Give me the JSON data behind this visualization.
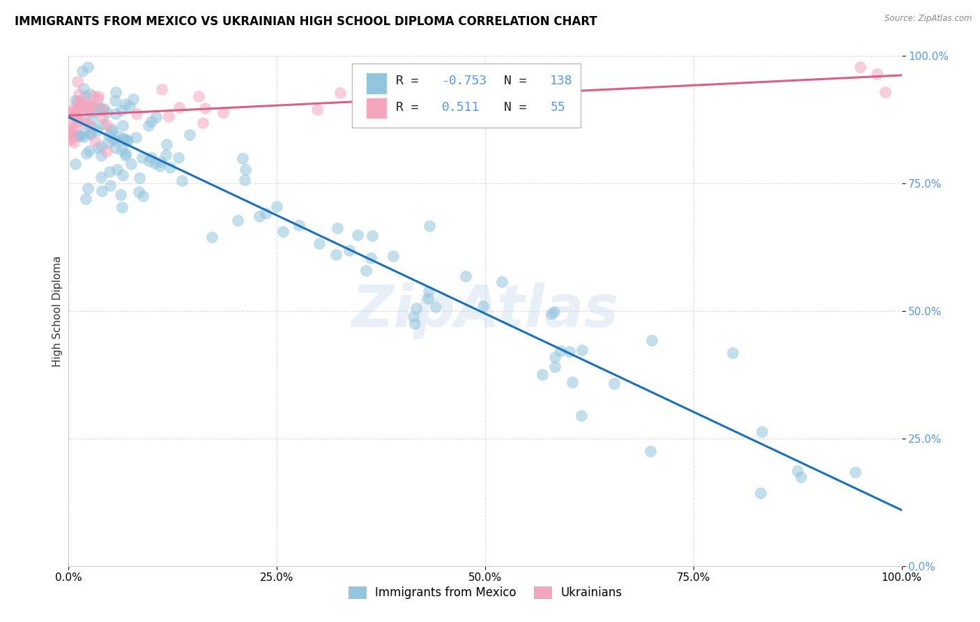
{
  "title": "IMMIGRANTS FROM MEXICO VS UKRAINIAN HIGH SCHOOL DIPLOMA CORRELATION CHART",
  "source": "Source: ZipAtlas.com",
  "ylabel": "High School Diploma",
  "legend_mexico": "Immigrants from Mexico",
  "legend_ukraine": "Ukrainians",
  "r_mexico": -0.753,
  "n_mexico": 138,
  "r_ukraine": 0.511,
  "n_ukraine": 55,
  "color_mexico": "#92c5de",
  "color_ukraine": "#f4a6bc",
  "trendline_mexico": "#1a6fba",
  "trendline_ukraine": "#d95f8a",
  "background_color": "#ffffff",
  "grid_color": "#cccccc",
  "watermark": "ZipAtlas",
  "tick_color": "#5599ee",
  "title_fontsize": 12,
  "axis_label_fontsize": 10,
  "tick_fontsize": 10,
  "legend_fontsize": 12
}
